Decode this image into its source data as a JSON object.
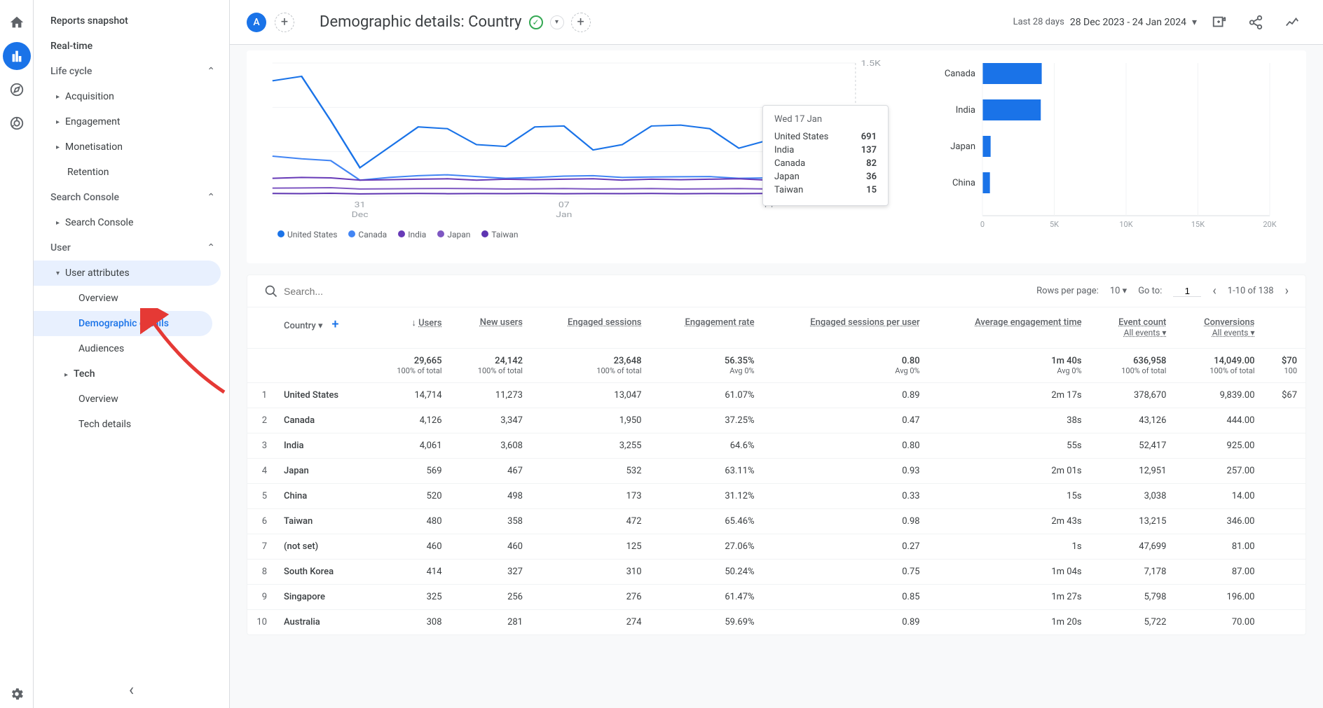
{
  "iconrail": [
    "home",
    "reports",
    "explore",
    "advertising"
  ],
  "sidebar": {
    "top": [
      "Reports snapshot",
      "Real-time"
    ],
    "groups": [
      {
        "label": "Life cycle",
        "items": [
          "Acquisition",
          "Engagement",
          "Monetisation",
          "Retention"
        ]
      },
      {
        "label": "Search Console",
        "items": [
          "Search Console"
        ]
      },
      {
        "label": "User",
        "items": [
          {
            "label": "User attributes",
            "expanded": true,
            "children": [
              "Overview",
              "Demographic details",
              "Audiences"
            ]
          },
          {
            "label": "Tech",
            "expanded": true,
            "children": [
              "Overview",
              "Tech details"
            ]
          }
        ]
      }
    ],
    "selected": "Demographic details"
  },
  "header": {
    "chip": "A",
    "title": "Demographic details: Country",
    "date_label": "Last 28 days",
    "date_range": "28 Dec 2023 - 24 Jan 2024"
  },
  "linechart": {
    "ylim": [
      0,
      1500
    ],
    "ytick_labels": [
      "1.5K"
    ],
    "xticks": [
      {
        "major": "31",
        "minor": "Dec"
      },
      {
        "major": "07",
        "minor": "Jan"
      },
      {
        "major": "14",
        "minor": ""
      }
    ],
    "series": [
      {
        "name": "United States",
        "color": "#1a73e8",
        "points": [
          1300,
          1350,
          850,
          320,
          550,
          780,
          760,
          580,
          560,
          780,
          790,
          520,
          580,
          790,
          800,
          760,
          540,
          630,
          850,
          870,
          691
        ]
      },
      {
        "name": "Canada",
        "color": "#4285f4",
        "points": [
          450,
          420,
          400,
          180,
          210,
          230,
          240,
          220,
          200,
          210,
          225,
          230,
          210,
          215,
          218,
          220,
          200,
          205,
          210,
          220,
          82
        ]
      },
      {
        "name": "India",
        "color": "#673ab7",
        "points": [
          200,
          210,
          205,
          180,
          185,
          190,
          195,
          180,
          190,
          185,
          190,
          195,
          180,
          190,
          185,
          190,
          195,
          180,
          190,
          195,
          137
        ]
      },
      {
        "name": "Japan",
        "color": "#7e57c2",
        "points": [
          90,
          92,
          95,
          80,
          82,
          85,
          86,
          84,
          80,
          82,
          85,
          80,
          82,
          85,
          80,
          82,
          85,
          80,
          82,
          85,
          36
        ]
      },
      {
        "name": "Taiwan",
        "color": "#5e35b1",
        "points": [
          30,
          28,
          32,
          25,
          28,
          30,
          27,
          29,
          28,
          30,
          27,
          29,
          28,
          30,
          27,
          29,
          28,
          30,
          27,
          29,
          15
        ]
      }
    ],
    "tooltip": {
      "date": "Wed 17 Jan",
      "rows": [
        {
          "label": "United States",
          "value": "691"
        },
        {
          "label": "India",
          "value": "137"
        },
        {
          "label": "Canada",
          "value": "82"
        },
        {
          "label": "Japan",
          "value": "36"
        },
        {
          "label": "Taiwan",
          "value": "15"
        }
      ]
    },
    "legend": [
      "United States",
      "Canada",
      "India",
      "Japan",
      "Taiwan"
    ],
    "legend_colors": [
      "#1a73e8",
      "#4285f4",
      "#673ab7",
      "#7e57c2",
      "#5e35b1"
    ]
  },
  "barchart": {
    "bars": [
      {
        "label": "Canada",
        "value": 4126
      },
      {
        "label": "India",
        "value": 4061
      },
      {
        "label": "Japan",
        "value": 569
      },
      {
        "label": "China",
        "value": 520
      }
    ],
    "xticks": [
      0,
      5000,
      10000,
      15000,
      20000
    ],
    "xtick_labels": [
      "0",
      "5K",
      "10K",
      "15K",
      "20K"
    ],
    "color": "#1a73e8"
  },
  "table": {
    "search_placeholder": "Search...",
    "rows_label": "Rows per page:",
    "rows_per_page": "10",
    "goto_label": "Go to:",
    "goto_value": "1",
    "range": "1-10 of 138",
    "country_header": "Country",
    "columns": [
      {
        "h": "Users",
        "arrow": true
      },
      {
        "h": "New users"
      },
      {
        "h": "Engaged sessions"
      },
      {
        "h": "Engagement rate"
      },
      {
        "h": "Engaged sessions per user"
      },
      {
        "h": "Average engagement time"
      },
      {
        "h": "Event count",
        "sub": "All events"
      },
      {
        "h": "Conversions",
        "sub": "All events"
      },
      {
        "h": ""
      }
    ],
    "totals": {
      "cells": [
        "29,665",
        "24,142",
        "23,648",
        "56.35%",
        "0.80",
        "1m 40s",
        "636,958",
        "14,049.00",
        "$70"
      ],
      "subs": [
        "100% of total",
        "100% of total",
        "100% of total",
        "Avg 0%",
        "Avg 0%",
        "Avg 0%",
        "100% of total",
        "100% of total",
        "100"
      ]
    },
    "rows": [
      {
        "n": 1,
        "c": "United States",
        "v": [
          "14,714",
          "11,273",
          "13,047",
          "61.07%",
          "0.89",
          "2m 17s",
          "378,670",
          "9,839.00",
          "$67"
        ]
      },
      {
        "n": 2,
        "c": "Canada",
        "v": [
          "4,126",
          "3,347",
          "1,950",
          "37.25%",
          "0.47",
          "38s",
          "43,126",
          "444.00",
          ""
        ]
      },
      {
        "n": 3,
        "c": "India",
        "v": [
          "4,061",
          "3,608",
          "3,255",
          "64.6%",
          "0.80",
          "55s",
          "52,417",
          "925.00",
          ""
        ]
      },
      {
        "n": 4,
        "c": "Japan",
        "v": [
          "569",
          "467",
          "532",
          "63.11%",
          "0.93",
          "2m 01s",
          "12,951",
          "257.00",
          ""
        ]
      },
      {
        "n": 5,
        "c": "China",
        "v": [
          "520",
          "498",
          "173",
          "31.12%",
          "0.33",
          "15s",
          "3,038",
          "14.00",
          ""
        ]
      },
      {
        "n": 6,
        "c": "Taiwan",
        "v": [
          "480",
          "358",
          "472",
          "65.46%",
          "0.98",
          "2m 43s",
          "13,215",
          "346.00",
          ""
        ]
      },
      {
        "n": 7,
        "c": "(not set)",
        "v": [
          "460",
          "460",
          "125",
          "27.06%",
          "0.27",
          "1s",
          "47,699",
          "81.00",
          ""
        ]
      },
      {
        "n": 8,
        "c": "South Korea",
        "v": [
          "414",
          "327",
          "310",
          "50.24%",
          "0.75",
          "1m 04s",
          "7,178",
          "87.00",
          ""
        ]
      },
      {
        "n": 9,
        "c": "Singapore",
        "v": [
          "325",
          "256",
          "276",
          "61.47%",
          "0.85",
          "1m 27s",
          "5,798",
          "196.00",
          ""
        ]
      },
      {
        "n": 10,
        "c": "Australia",
        "v": [
          "308",
          "281",
          "274",
          "59.69%",
          "0.89",
          "1m 20s",
          "5,722",
          "70.00",
          ""
        ]
      }
    ]
  }
}
